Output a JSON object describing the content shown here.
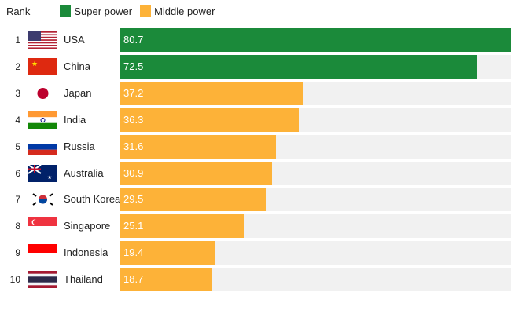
{
  "colors": {
    "super": "#1b8a3a",
    "middle": "#fdb238"
  },
  "chart_data": {
    "type": "bar",
    "header": "Rank",
    "legend": [
      {
        "label": "Super power",
        "color": "#1b8a3a"
      },
      {
        "label": "Middle power",
        "color": "#fdb238"
      }
    ],
    "xlim": [
      0,
      79.4
    ],
    "rows": [
      {
        "rank": "1",
        "country": "USA",
        "value": 80.7,
        "cls": "super",
        "flag": "us"
      },
      {
        "rank": "2",
        "country": "China",
        "value": 72.5,
        "cls": "super",
        "flag": "cn"
      },
      {
        "rank": "3",
        "country": "Japan",
        "value": 37.2,
        "cls": "middle",
        "flag": "jp"
      },
      {
        "rank": "4",
        "country": "India",
        "value": 36.3,
        "cls": "middle",
        "flag": "in"
      },
      {
        "rank": "5",
        "country": "Russia",
        "value": 31.6,
        "cls": "middle",
        "flag": "ru"
      },
      {
        "rank": "6",
        "country": "Australia",
        "value": 30.9,
        "cls": "middle",
        "flag": "au"
      },
      {
        "rank": "7",
        "country": "South Korea",
        "value": 29.5,
        "cls": "middle",
        "flag": "kr"
      },
      {
        "rank": "8",
        "country": "Singapore",
        "value": 25.1,
        "cls": "middle",
        "flag": "sg"
      },
      {
        "rank": "9",
        "country": "Indonesia",
        "value": 19.4,
        "cls": "middle",
        "flag": "id"
      },
      {
        "rank": "10",
        "country": "Thailand",
        "value": 18.7,
        "cls": "middle",
        "flag": "th"
      }
    ]
  }
}
